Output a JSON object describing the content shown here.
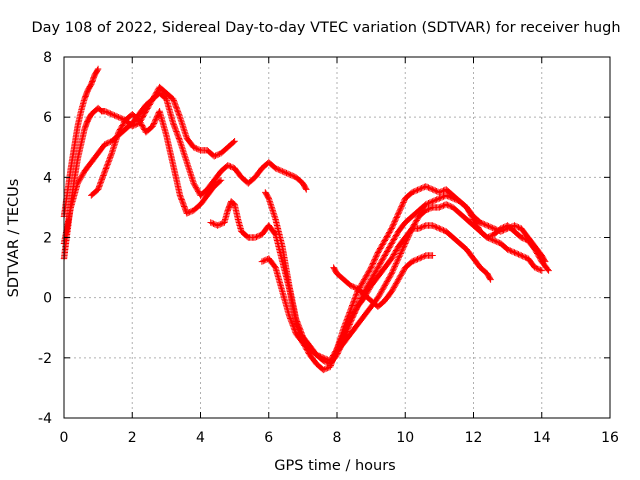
{
  "chart_data": {
    "type": "scatter",
    "title": "Day 108 of 2022, Sidereal Day-to-day VTEC variation (SDTVAR) for receiver hugh",
    "xlabel": "GPS time / hours",
    "ylabel": "SDTVAR / TECUs",
    "xlim": [
      0,
      16
    ],
    "ylim": [
      -4,
      8
    ],
    "xticks": [
      "0",
      "2",
      "4",
      "6",
      "8",
      "10",
      "12",
      "14",
      "16"
    ],
    "yticks": [
      "-4",
      "-2",
      "0",
      "2",
      "4",
      "6",
      "8"
    ],
    "grid": true,
    "legend": "none",
    "marker": "+",
    "color": "#ff0000",
    "series": [
      {
        "x": [
          0.0,
          0.1,
          0.2,
          0.3,
          0.4,
          0.5,
          0.6,
          0.7,
          0.8,
          0.9,
          1.0
        ],
        "y": [
          2.7,
          3.5,
          4.3,
          5.0,
          5.7,
          6.2,
          6.6,
          6.9,
          7.1,
          7.4,
          7.6
        ]
      },
      {
        "x": [
          0.0,
          0.1,
          0.2,
          0.3,
          0.4,
          0.5,
          0.6,
          0.7,
          0.8,
          0.9,
          1.0,
          1.1,
          1.2,
          1.4,
          1.6,
          1.8,
          2.0,
          2.2,
          2.4,
          2.6,
          2.8,
          3.0,
          3.2,
          3.4,
          3.6,
          3.8,
          4.0,
          4.2,
          4.4,
          4.6,
          4.8,
          5.0
        ],
        "y": [
          1.3,
          2.2,
          3.1,
          3.9,
          4.6,
          5.1,
          5.6,
          5.9,
          6.1,
          6.2,
          6.3,
          6.2,
          6.2,
          6.1,
          6.0,
          5.9,
          5.7,
          5.8,
          6.2,
          6.6,
          7.0,
          6.8,
          6.6,
          6.0,
          5.3,
          5.0,
          4.9,
          4.9,
          4.7,
          4.8,
          5.0,
          5.2
        ]
      },
      {
        "x": [
          0.0,
          0.2,
          0.4,
          0.6,
          0.8,
          1.0,
          1.2,
          1.4,
          1.6,
          1.8,
          2.0,
          2.2,
          2.4,
          2.6,
          2.8,
          3.0,
          3.2,
          3.4,
          3.6,
          3.8,
          4.0,
          4.2,
          4.4,
          4.6,
          4.8,
          5.0,
          5.2,
          5.4,
          5.6,
          5.8,
          6.0,
          6.2,
          6.4,
          6.6,
          6.8,
          7.0,
          7.1
        ],
        "y": [
          1.8,
          3.0,
          3.8,
          4.2,
          4.5,
          4.8,
          5.1,
          5.2,
          5.4,
          5.6,
          5.8,
          6.1,
          6.4,
          6.6,
          6.8,
          6.6,
          5.8,
          5.2,
          4.5,
          3.8,
          3.4,
          3.6,
          3.9,
          4.2,
          4.4,
          4.3,
          4.0,
          3.8,
          4.0,
          4.3,
          4.5,
          4.3,
          4.2,
          4.1,
          4.0,
          3.8,
          3.6
        ]
      },
      {
        "x": [
          0.8,
          0.9,
          1.0,
          1.2,
          1.4,
          1.6,
          1.8,
          2.0,
          2.2,
          2.4,
          2.6,
          2.8,
          3.0,
          3.2,
          3.4,
          3.6,
          3.8,
          4.0,
          4.2,
          4.4,
          4.6
        ],
        "y": [
          3.4,
          3.5,
          3.6,
          4.2,
          4.8,
          5.5,
          5.9,
          6.1,
          5.9,
          5.5,
          5.7,
          6.2,
          5.4,
          4.4,
          3.4,
          2.8,
          2.9,
          3.1,
          3.4,
          3.7,
          3.9
        ]
      },
      {
        "x": [
          4.3,
          4.5,
          4.7,
          4.8,
          4.9,
          5.0,
          5.1,
          5.2,
          5.4,
          5.6,
          5.8,
          6.0,
          6.2,
          6.4,
          6.6,
          6.8,
          7.0,
          7.2,
          7.4,
          7.6,
          7.8,
          8.0,
          8.2,
          8.4,
          8.6,
          8.8,
          9.0,
          9.2,
          9.4,
          9.6,
          9.8,
          10.0,
          10.2,
          10.4,
          10.6,
          10.8,
          11.0,
          11.2,
          11.4,
          11.6,
          11.8,
          12.0,
          12.2,
          12.4,
          12.6,
          12.8,
          13.0,
          13.2,
          13.4,
          13.6,
          13.8,
          14.0,
          14.1
        ],
        "y": [
          2.5,
          2.4,
          2.5,
          2.9,
          3.2,
          3.1,
          2.6,
          2.2,
          2.0,
          2.0,
          2.1,
          2.4,
          2.1,
          1.2,
          0.3,
          -0.8,
          -1.5,
          -1.9,
          -2.2,
          -2.4,
          -2.3,
          -1.7,
          -1.0,
          -0.4,
          0.2,
          0.6,
          1.0,
          1.5,
          1.9,
          2.3,
          2.8,
          3.3,
          3.5,
          3.6,
          3.7,
          3.6,
          3.5,
          3.6,
          3.4,
          3.2,
          3.0,
          2.7,
          2.5,
          2.4,
          2.3,
          2.2,
          2.3,
          2.4,
          2.3,
          2.0,
          1.7,
          1.4,
          1.2
        ]
      },
      {
        "x": [
          5.8,
          6.0,
          6.2,
          6.4,
          6.6,
          6.8,
          7.0,
          7.2,
          7.4,
          7.6,
          7.8,
          8.0,
          8.2,
          8.4,
          8.6,
          8.8,
          9.0,
          9.2,
          9.4,
          9.6,
          9.8,
          10.0,
          10.2,
          10.4,
          10.6,
          10.8,
          11.0,
          11.2,
          11.4,
          11.6,
          11.8,
          12.0,
          12.2,
          12.4,
          12.6,
          12.8,
          13.0,
          13.2,
          13.4,
          13.6,
          13.8,
          14.0,
          14.2
        ],
        "y": [
          1.2,
          1.3,
          1.0,
          0.2,
          -0.6,
          -1.2,
          -1.5,
          -1.7,
          -1.9,
          -2.1,
          -2.2,
          -1.9,
          -1.4,
          -0.8,
          -0.3,
          0.2,
          0.6,
          1.0,
          1.4,
          1.8,
          2.2,
          2.5,
          2.7,
          2.9,
          3.1,
          3.2,
          3.3,
          3.4,
          3.3,
          3.2,
          3.0,
          2.6,
          2.2,
          2.0,
          2.1,
          2.3,
          2.4,
          2.2,
          2.0,
          1.9,
          1.6,
          1.2,
          0.9
        ]
      },
      {
        "x": [
          5.9,
          6.0,
          6.2,
          6.4,
          6.6,
          6.8,
          7.0,
          7.2,
          7.4,
          7.6,
          7.8,
          8.0,
          8.2,
          8.4,
          8.6,
          8.8,
          9.0,
          9.2,
          9.4,
          9.6,
          9.8,
          10.0,
          10.2,
          10.4,
          10.6,
          10.8,
          11.0,
          11.2,
          11.4,
          11.6,
          11.8,
          12.0,
          12.2,
          12.4,
          12.5
        ],
        "y": [
          3.5,
          3.3,
          2.6,
          1.7,
          0.4,
          -0.7,
          -1.3,
          -1.6,
          -1.9,
          -2.0,
          -2.1,
          -1.7,
          -1.2,
          -0.7,
          -0.3,
          0.0,
          0.4,
          0.7,
          1.0,
          1.3,
          1.7,
          2.0,
          2.3,
          2.3,
          2.4,
          2.4,
          2.3,
          2.2,
          2.0,
          1.8,
          1.6,
          1.3,
          1.0,
          0.8,
          0.6
        ]
      },
      {
        "x": [
          7.9,
          8.0,
          8.2,
          8.4,
          8.6,
          8.8,
          9.0,
          9.2,
          9.4,
          9.6,
          9.8,
          10.0,
          10.2,
          10.4,
          10.6,
          10.8
        ],
        "y": [
          1.0,
          0.8,
          0.6,
          0.4,
          0.3,
          0.1,
          -0.1,
          -0.3,
          -0.1,
          0.2,
          0.6,
          1.0,
          1.2,
          1.3,
          1.4,
          1.4
        ]
      },
      {
        "x": [
          8.0,
          8.4,
          8.8,
          9.2,
          9.6,
          10.0,
          10.2,
          10.4,
          10.6,
          10.8,
          11.0,
          11.2,
          11.4,
          11.6,
          11.8,
          12.0,
          12.2,
          12.4,
          12.6,
          12.8,
          13.0,
          13.2,
          13.4,
          13.6,
          13.8,
          14.0
        ],
        "y": [
          -1.8,
          -1.2,
          -0.6,
          0.0,
          0.8,
          1.8,
          2.3,
          2.7,
          2.9,
          3.0,
          3.0,
          3.1,
          3.0,
          2.8,
          2.6,
          2.4,
          2.2,
          2.0,
          1.9,
          1.8,
          1.6,
          1.5,
          1.4,
          1.3,
          1.0,
          0.9
        ]
      }
    ]
  }
}
